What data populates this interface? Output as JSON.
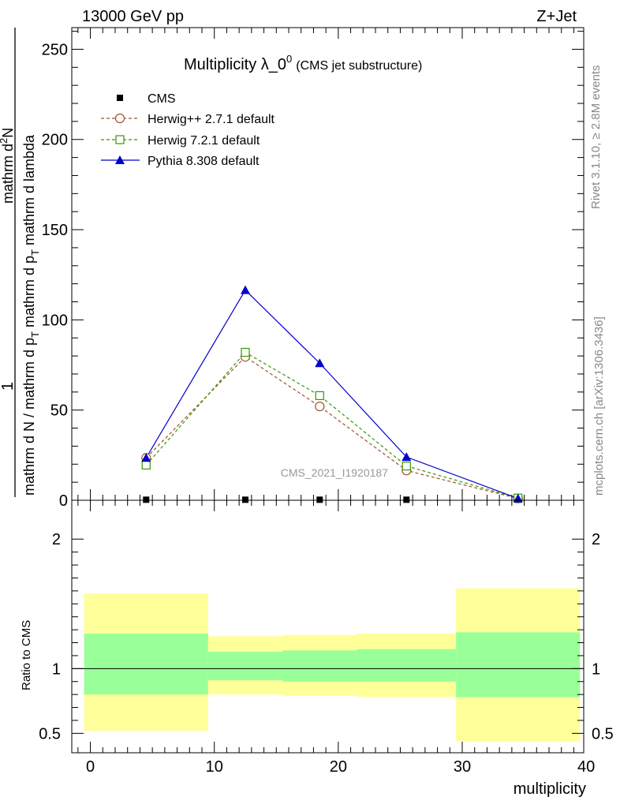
{
  "header": {
    "left": "13000 GeV pp",
    "right": "Z+Jet"
  },
  "side_labels": {
    "rivet": "Rivet 3.1.10, ≥ 2.8M events",
    "mcplots": "mcplots.cern.ch [arXiv:1306.3436]"
  },
  "watermark": "CMS_2021_I1920187",
  "chart_data": {
    "type": "line",
    "title": {
      "main": "Multiplicity λ_0",
      "superscript": "0",
      "suffix": "(CMS jet substructure)"
    },
    "xlabel": "multiplicity",
    "xlim": [
      -1.5,
      39.8
    ],
    "x_ticks": [
      "0",
      "10",
      "20",
      "30",
      "40"
    ],
    "ylabel": {
      "numerator": "1",
      "denominator": "mathrm d N / mathrm d p",
      "denominator_sub": "T",
      "denominator_rest": " mathrm d p",
      "denominator_sub2": "T",
      "denominator_tail": " mathrm d lambda",
      "numerator_top": "mathrm d",
      "numerator_sup": "2",
      "numerator_tail": "N"
    },
    "ylim": [
      0,
      262
    ],
    "y_ticks": [
      "0",
      "50",
      "100",
      "150",
      "200",
      "250"
    ],
    "bins": [
      [
        -0.5,
        9.5
      ],
      [
        9.5,
        15.5
      ],
      [
        15.5,
        21.5
      ],
      [
        21.5,
        29.5
      ],
      [
        29.5,
        39.5
      ]
    ],
    "x": [
      4.5,
      12.5,
      18.5,
      25.5,
      34.5
    ],
    "series": [
      {
        "name": "CMS",
        "marker": "square-filled",
        "color": "#000000",
        "values": [
          0.3,
          0.3,
          0.3,
          0.3,
          0.3
        ],
        "line": false
      },
      {
        "name": "Herwig++ 2.7.1 default",
        "marker": "circle-open",
        "color": "#a0522d",
        "values": [
          23.5,
          79.5,
          52.0,
          16.5,
          1.0
        ],
        "dashed": true
      },
      {
        "name": "Herwig 7.2.1 default",
        "marker": "square-open",
        "color": "#339900",
        "values": [
          19.5,
          82.0,
          58.0,
          19.0,
          1.2
        ],
        "dashed": true
      },
      {
        "name": "Pythia 8.308 default",
        "marker": "triangle-filled",
        "color": "#0000cc",
        "values": [
          23.5,
          116.5,
          76.0,
          24.0,
          1.0
        ],
        "dashed": false
      }
    ],
    "ratio": {
      "ylabel": "Ratio to CMS",
      "ylim": [
        0.35,
        2.3
      ],
      "y_ticks": [
        "0.5",
        "1",
        "2"
      ],
      "y_tick_values": [
        0.5,
        1,
        2
      ],
      "bands": [
        {
          "yellow": [
            0.52,
            1.58
          ],
          "green": [
            0.8,
            1.27
          ]
        },
        {
          "yellow": [
            0.8,
            1.25
          ],
          "green": [
            0.91,
            1.13
          ]
        },
        {
          "yellow": [
            0.79,
            1.26
          ],
          "green": [
            0.9,
            1.14
          ]
        },
        {
          "yellow": [
            0.78,
            1.27
          ],
          "green": [
            0.9,
            1.15
          ]
        },
        {
          "yellow": [
            0.44,
            1.62
          ],
          "green": [
            0.78,
            1.28
          ]
        }
      ]
    }
  }
}
